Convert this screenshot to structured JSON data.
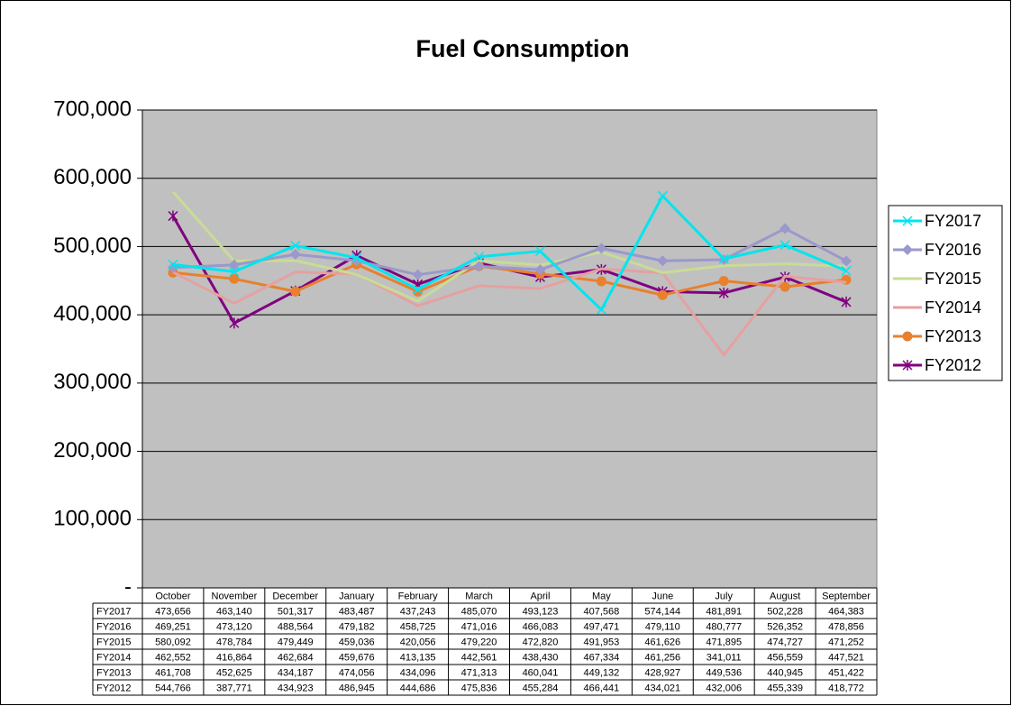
{
  "chart_data": {
    "type": "line",
    "title": "Fuel Consumption",
    "categories": [
      "October",
      "November",
      "December",
      "January",
      "February",
      "March",
      "April",
      "May",
      "June",
      "July",
      "August",
      "September"
    ],
    "ylim": [
      0,
      700000
    ],
    "yticks": [
      {
        "value": 0,
        "label": "-"
      },
      {
        "value": 100000,
        "label": "100,000"
      },
      {
        "value": 200000,
        "label": "200,000"
      },
      {
        "value": 300000,
        "label": "300,000"
      },
      {
        "value": 400000,
        "label": "400,000"
      },
      {
        "value": 500000,
        "label": "500,000"
      },
      {
        "value": 600000,
        "label": "600,000"
      },
      {
        "value": 700000,
        "label": "700,000"
      }
    ],
    "grid": true,
    "legend": "right",
    "series": [
      {
        "name": "FY2017",
        "color": "#00e5ee",
        "marker": "x",
        "values": [
          473656,
          463140,
          501317,
          483487,
          437243,
          485070,
          493123,
          407568,
          574144,
          481891,
          502228,
          464383
        ],
        "value_labels": [
          "473,656",
          "463,140",
          "501,317",
          "483,487",
          "437,243",
          "485,070",
          "493,123",
          "407,568",
          "574,144",
          "481,891",
          "502,228",
          "464,383"
        ]
      },
      {
        "name": "FY2016",
        "color": "#9999cc",
        "marker": "diamond",
        "values": [
          469251,
          473120,
          488564,
          479182,
          458725,
          471016,
          466083,
          497471,
          479110,
          480777,
          526352,
          478856
        ],
        "value_labels": [
          "469,251",
          "473,120",
          "488,564",
          "479,182",
          "458,725",
          "471,016",
          "466,083",
          "497,471",
          "479,110",
          "480,777",
          "526,352",
          "478,856"
        ]
      },
      {
        "name": "FY2015",
        "color": "#c8dc96",
        "marker": "none",
        "values": [
          580092,
          478784,
          479449,
          459036,
          420056,
          479220,
          472820,
          491953,
          461626,
          471895,
          474727,
          471252
        ],
        "value_labels": [
          "580,092",
          "478,784",
          "479,449",
          "459,036",
          "420,056",
          "479,220",
          "472,820",
          "491,953",
          "461,626",
          "471,895",
          "474,727",
          "471,252"
        ]
      },
      {
        "name": "FY2014",
        "color": "#e6a0a0",
        "marker": "none",
        "values": [
          462552,
          416864,
          462684,
          459676,
          413135,
          442561,
          438430,
          467334,
          461256,
          341011,
          456559,
          447521
        ],
        "value_labels": [
          "462,552",
          "416,864",
          "462,684",
          "459,676",
          "413,135",
          "442,561",
          "438,430",
          "467,334",
          "461,256",
          "341,011",
          "456,559",
          "447,521"
        ]
      },
      {
        "name": "FY2013",
        "color": "#e8802e",
        "marker": "circle",
        "values": [
          461708,
          452625,
          434187,
          474056,
          434096,
          471313,
          460041,
          449132,
          428927,
          449536,
          440945,
          451422
        ],
        "value_labels": [
          "461,708",
          "452,625",
          "434,187",
          "474,056",
          "434,096",
          "471,313",
          "460,041",
          "449,132",
          "428,927",
          "449,536",
          "440,945",
          "451,422"
        ]
      },
      {
        "name": "FY2012",
        "color": "#800080",
        "marker": "star",
        "values": [
          544766,
          387771,
          434923,
          486945,
          444686,
          475836,
          455284,
          466441,
          434021,
          432006,
          455339,
          418772
        ],
        "value_labels": [
          "544,766",
          "387,771",
          "434,923",
          "486,945",
          "444,686",
          "475,836",
          "455,284",
          "466,441",
          "434,021",
          "432,006",
          "455,339",
          "418,772"
        ]
      }
    ]
  }
}
